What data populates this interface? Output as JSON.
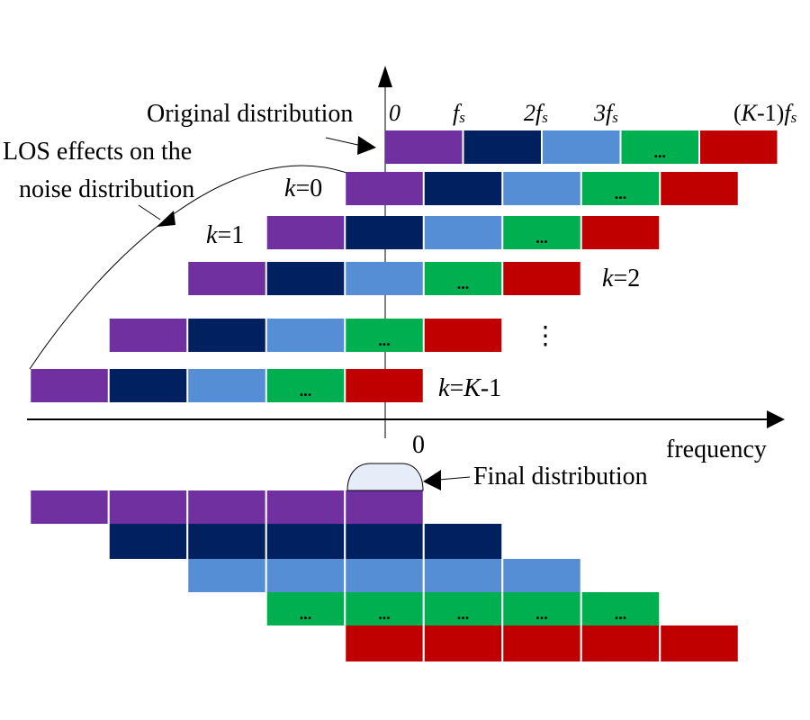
{
  "colors": {
    "band1": "#7030A0",
    "band2": "#002060",
    "band3": "#558ED5",
    "band4": "#00B050",
    "band5": "#C00000",
    "final_blob": "#E6ECF8",
    "ink": "#000000"
  },
  "top_tick_labels": {
    "zero": "0",
    "fs": "f",
    "fs_sub": "s",
    "two_fs": "2f",
    "two_fs_sub": "s",
    "three_fs": "3f",
    "three_fs_sub": "s",
    "k_minus_1_fs_prefix": "(",
    "k_minus_1_fs_K": "K",
    "k_minus_1_fs_mid": "-1)",
    "k_minus_1_fs_f": "f",
    "k_minus_1_fs_sub": "s"
  },
  "labels": {
    "original_distribution": "Original distribution",
    "los_line1": "LOS  effects on the",
    "los_line2": "noise distribution",
    "k0_k": "k",
    "k0_rest": "=0",
    "k1_k": "k",
    "k1_rest": "=1",
    "k2_k": "k",
    "k2_rest": "=2",
    "vdots": "⋮",
    "kK_k": "k",
    "kK_eq": "=",
    "kK_K": "K",
    "kK_rest": "-1",
    "axis_zero": "0",
    "frequency": "frequency",
    "final_distribution": "Final distribution"
  },
  "band_ellipsis": "...",
  "rows": [
    {
      "name": "original",
      "start_index": 0
    },
    {
      "name": "k-0",
      "start_index": -0.5
    },
    {
      "name": "k-1",
      "start_index": -1.5
    },
    {
      "name": "k-2",
      "start_index": -2.5
    },
    {
      "name": "k-dots",
      "start_index": -3.5
    },
    {
      "name": "k-K-1",
      "start_index": -4.5
    }
  ],
  "final_rows": [
    {
      "band": "band1",
      "start_index": -4.5,
      "count": 5,
      "ellipsis": false
    },
    {
      "band": "band2",
      "start_index": -3.5,
      "count": 5,
      "ellipsis": false
    },
    {
      "band": "band3",
      "start_index": -2.5,
      "count": 5,
      "ellipsis": false
    },
    {
      "band": "band4",
      "start_index": -1.5,
      "count": 5,
      "ellipsis": true
    },
    {
      "band": "band5",
      "start_index": -0.5,
      "count": 5,
      "ellipsis": false
    }
  ]
}
